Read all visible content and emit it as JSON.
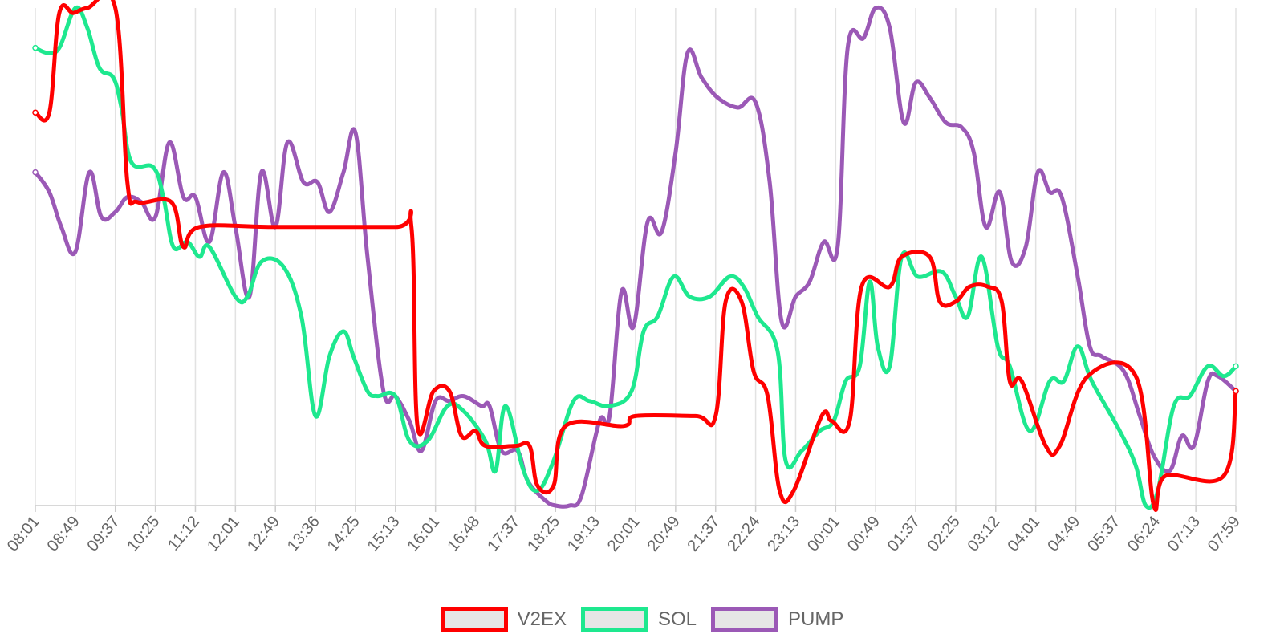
{
  "chart_data": {
    "type": "line",
    "title": "",
    "xlabel": "",
    "ylabel": "",
    "categories": [
      "08:01",
      "08:49",
      "09:37",
      "10:25",
      "11:12",
      "12:01",
      "12:49",
      "13:36",
      "14:25",
      "15:13",
      "16:01",
      "16:48",
      "17:37",
      "18:25",
      "19:13",
      "20:01",
      "20:49",
      "21:37",
      "22:24",
      "23:13",
      "00:01",
      "00:49",
      "01:37",
      "02:25",
      "03:12",
      "04:01",
      "04:49",
      "05:37",
      "06:24",
      "07:13",
      "07:59"
    ],
    "ylim": [
      0,
      100
    ],
    "grid": "vertical",
    "legend_position": "bottom",
    "y_axis_labels_shown": false,
    "series": [
      {
        "name": "V2EX",
        "color": "#ff0000",
        "values": [
          [
            0,
            79
          ],
          [
            0.35,
            79
          ],
          [
            0.6,
            99
          ],
          [
            0.95,
            99
          ],
          [
            1.3,
            100
          ],
          [
            2,
            100
          ],
          [
            2.3,
            65
          ],
          [
            2.55,
            61
          ],
          [
            3.4,
            61
          ],
          [
            3.7,
            52
          ],
          [
            4.1,
            56
          ],
          [
            6,
            56
          ],
          [
            9,
            56
          ],
          [
            9.4,
            56
          ],
          [
            9.55,
            16
          ],
          [
            9.95,
            23
          ],
          [
            10.35,
            23
          ],
          [
            10.65,
            14
          ],
          [
            11,
            15
          ],
          [
            11.25,
            12
          ],
          [
            12,
            12
          ],
          [
            12.35,
            12
          ],
          [
            12.55,
            4
          ],
          [
            12.95,
            4
          ],
          [
            13.25,
            16
          ],
          [
            14.7,
            16
          ],
          [
            15,
            18
          ],
          [
            16.5,
            18
          ],
          [
            17,
            18
          ],
          [
            17.25,
            41
          ],
          [
            17.65,
            41
          ],
          [
            17.95,
            27
          ],
          [
            18.3,
            22
          ],
          [
            18.6,
            3
          ],
          [
            18.95,
            3
          ],
          [
            19.65,
            18
          ],
          [
            19.9,
            17
          ],
          [
            20.35,
            17
          ],
          [
            20.65,
            44
          ],
          [
            21.35,
            44
          ],
          [
            21.65,
            50
          ],
          [
            22.35,
            50
          ],
          [
            22.6,
            41
          ],
          [
            23,
            41
          ],
          [
            23.35,
            44
          ],
          [
            23.8,
            44
          ],
          [
            24.15,
            41
          ],
          [
            24.35,
            25
          ],
          [
            24.65,
            25
          ],
          [
            25.25,
            12
          ],
          [
            25.6,
            12
          ],
          [
            26.3,
            26
          ],
          [
            27.5,
            26
          ],
          [
            27.95,
            0
          ],
          [
            28.25,
            6
          ],
          [
            29.7,
            6
          ],
          [
            30,
            23
          ]
        ]
      },
      {
        "name": "SOL",
        "color": "#1ee88f",
        "values": [
          [
            0,
            92
          ],
          [
            0.3,
            91
          ],
          [
            0.6,
            92
          ],
          [
            1,
            100
          ],
          [
            1.3,
            96
          ],
          [
            1.6,
            88
          ],
          [
            1.95,
            86
          ],
          [
            2.15,
            80
          ],
          [
            2.4,
            69
          ],
          [
            2.95,
            68
          ],
          [
            3.2,
            62
          ],
          [
            3.45,
            52
          ],
          [
            3.8,
            53
          ],
          [
            4.1,
            50
          ],
          [
            4.35,
            52
          ],
          [
            5,
            42
          ],
          [
            5.3,
            42
          ],
          [
            5.65,
            49
          ],
          [
            6.2,
            48
          ],
          [
            6.65,
            38
          ],
          [
            7,
            18
          ],
          [
            7.35,
            30
          ],
          [
            7.7,
            35
          ],
          [
            7.95,
            30
          ],
          [
            8.3,
            23
          ],
          [
            8.55,
            22
          ],
          [
            9,
            22
          ],
          [
            9.35,
            13
          ],
          [
            9.8,
            13
          ],
          [
            10.3,
            20
          ],
          [
            10.7,
            19
          ],
          [
            11.25,
            13
          ],
          [
            11.5,
            7
          ],
          [
            11.75,
            20
          ],
          [
            12.2,
            7
          ],
          [
            12.55,
            3
          ],
          [
            12.95,
            9
          ],
          [
            13.45,
            21
          ],
          [
            13.85,
            21
          ],
          [
            14.35,
            20
          ],
          [
            14.9,
            23
          ],
          [
            15.2,
            35
          ],
          [
            15.55,
            38
          ],
          [
            15.95,
            46
          ],
          [
            16.35,
            42
          ],
          [
            16.85,
            42
          ],
          [
            17.35,
            46
          ],
          [
            17.7,
            44
          ],
          [
            18.05,
            38
          ],
          [
            18.55,
            31
          ],
          [
            18.75,
            9
          ],
          [
            19.15,
            11
          ],
          [
            19.6,
            15
          ],
          [
            19.95,
            17
          ],
          [
            20.25,
            25
          ],
          [
            20.6,
            28
          ],
          [
            20.85,
            45
          ],
          [
            21.05,
            32
          ],
          [
            21.35,
            28
          ],
          [
            21.65,
            50
          ],
          [
            22.05,
            46
          ],
          [
            22.65,
            47
          ],
          [
            23,
            42
          ],
          [
            23.3,
            38
          ],
          [
            23.65,
            50
          ],
          [
            24.05,
            32
          ],
          [
            24.35,
            28
          ],
          [
            24.85,
            15
          ],
          [
            25.35,
            25
          ],
          [
            25.7,
            25
          ],
          [
            26.05,
            32
          ],
          [
            26.4,
            25
          ],
          [
            27.1,
            15
          ],
          [
            27.5,
            8
          ],
          [
            27.75,
            0
          ],
          [
            28.05,
            3
          ],
          [
            28.45,
            20
          ],
          [
            28.85,
            22
          ],
          [
            29.3,
            28
          ],
          [
            29.7,
            26
          ],
          [
            30,
            28
          ]
        ]
      },
      {
        "name": "PUMP",
        "color": "#9b59b6",
        "values": [
          [
            0,
            67
          ],
          [
            0.35,
            63
          ],
          [
            0.65,
            56
          ],
          [
            1,
            51
          ],
          [
            1.35,
            67
          ],
          [
            1.65,
            58
          ],
          [
            2,
            59
          ],
          [
            2.3,
            62
          ],
          [
            2.65,
            61
          ],
          [
            3,
            58
          ],
          [
            3.35,
            73
          ],
          [
            3.7,
            62
          ],
          [
            4,
            62
          ],
          [
            4.35,
            53
          ],
          [
            4.7,
            67
          ],
          [
            5,
            56
          ],
          [
            5.35,
            42
          ],
          [
            5.65,
            67
          ],
          [
            6,
            56
          ],
          [
            6.3,
            73
          ],
          [
            6.7,
            65
          ],
          [
            7.05,
            65
          ],
          [
            7.35,
            59
          ],
          [
            7.7,
            67
          ],
          [
            8,
            75
          ],
          [
            8.3,
            50
          ],
          [
            8.7,
            23
          ],
          [
            9,
            22
          ],
          [
            9.35,
            17
          ],
          [
            9.65,
            11
          ],
          [
            10,
            21
          ],
          [
            10.35,
            21
          ],
          [
            10.7,
            22
          ],
          [
            11.15,
            20
          ],
          [
            11.35,
            20
          ],
          [
            11.65,
            11
          ],
          [
            12.05,
            11
          ],
          [
            12.3,
            5
          ],
          [
            12.75,
            1
          ],
          [
            13,
            0
          ],
          [
            13.35,
            0
          ],
          [
            13.65,
            2
          ],
          [
            14.1,
            17
          ],
          [
            14.35,
            18
          ],
          [
            14.65,
            43
          ],
          [
            14.95,
            36
          ],
          [
            15.3,
            57
          ],
          [
            15.65,
            55
          ],
          [
            16,
            71
          ],
          [
            16.3,
            91
          ],
          [
            16.65,
            86
          ],
          [
            17.05,
            82
          ],
          [
            17.55,
            80
          ],
          [
            18,
            81
          ],
          [
            18.35,
            65
          ],
          [
            18.65,
            37
          ],
          [
            19,
            42
          ],
          [
            19.35,
            45
          ],
          [
            19.7,
            53
          ],
          [
            20.05,
            52
          ],
          [
            20.3,
            92
          ],
          [
            20.7,
            94
          ],
          [
            21,
            100
          ],
          [
            21.35,
            96
          ],
          [
            21.7,
            77
          ],
          [
            22,
            85
          ],
          [
            22.35,
            82
          ],
          [
            22.75,
            77
          ],
          [
            23.15,
            76
          ],
          [
            23.45,
            71
          ],
          [
            23.75,
            56
          ],
          [
            24.1,
            63
          ],
          [
            24.4,
            49
          ],
          [
            24.75,
            52
          ],
          [
            25.05,
            67
          ],
          [
            25.35,
            63
          ],
          [
            25.65,
            62
          ],
          [
            26.05,
            46
          ],
          [
            26.35,
            32
          ],
          [
            26.65,
            30
          ],
          [
            27.2,
            27
          ],
          [
            27.6,
            18
          ],
          [
            27.95,
            10
          ],
          [
            28.35,
            7
          ],
          [
            28.65,
            14
          ],
          [
            28.95,
            12
          ],
          [
            29.3,
            25
          ],
          [
            29.55,
            26
          ],
          [
            30,
            23
          ]
        ]
      }
    ]
  }
}
